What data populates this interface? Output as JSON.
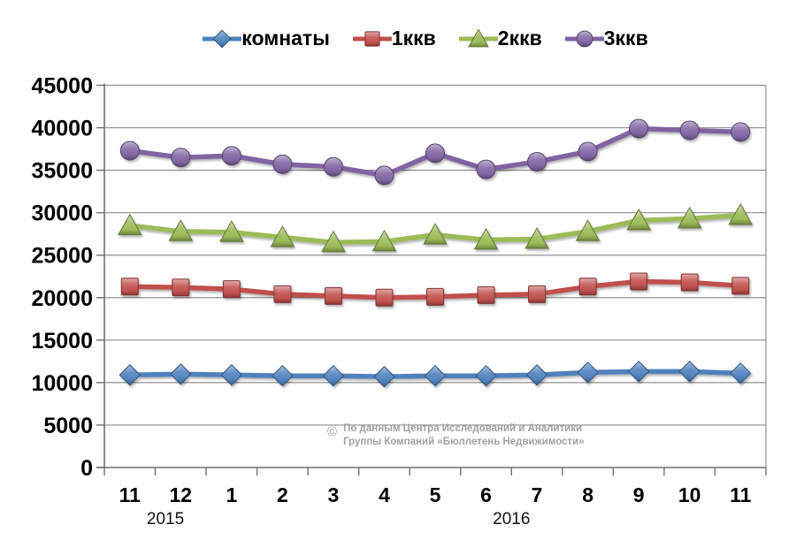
{
  "chart_data": {
    "type": "line",
    "title": "",
    "xlabel": "",
    "ylabel": "",
    "categories": [
      "11",
      "12",
      "1",
      "2",
      "3",
      "4",
      "5",
      "6",
      "7",
      "8",
      "9",
      "10",
      "11"
    ],
    "y_tick_labels": [
      "0",
      "5000",
      "10000",
      "15000",
      "20000",
      "25000",
      "30000",
      "35000",
      "40000",
      "45000"
    ],
    "ylim": [
      0,
      45000
    ],
    "ytick_step": 5000,
    "grid": "horizontal",
    "legend_position": "top",
    "axis_color": "#6f6f6f",
    "gridline_color": "#8f8f8f",
    "year_labels": [
      {
        "text": "2015",
        "month_index": 0.7
      },
      {
        "text": "2016",
        "month_index": 7.5
      }
    ],
    "series": [
      {
        "name": "комнаты",
        "marker": "diamond",
        "color": "#4F81BD",
        "values": [
          10900,
          11000,
          10900,
          10800,
          10800,
          10700,
          10800,
          10800,
          10900,
          11200,
          11300,
          11300,
          11100
        ]
      },
      {
        "name": "1ккв",
        "marker": "square",
        "color": "#C0504D",
        "values": [
          21300,
          21200,
          21000,
          20400,
          20200,
          20000,
          20100,
          20300,
          20400,
          21300,
          21900,
          21800,
          21400
        ]
      },
      {
        "name": "2ккв",
        "marker": "triangle",
        "color": "#9BBB59",
        "values": [
          28500,
          27800,
          27700,
          27100,
          26500,
          26600,
          27400,
          26800,
          26900,
          27800,
          29100,
          29300,
          29700
        ]
      },
      {
        "name": "3ккв",
        "marker": "circle",
        "color": "#8064A2",
        "values": [
          37300,
          36500,
          36700,
          35700,
          35400,
          34400,
          37000,
          35100,
          36000,
          37200,
          39900,
          39700,
          39500
        ]
      }
    ]
  },
  "watermark": {
    "symbol": "©",
    "line1": "По данным Центра Исследований и Аналитики",
    "line2": "Группы Компаний «Бюллетень Недвижимости»"
  }
}
